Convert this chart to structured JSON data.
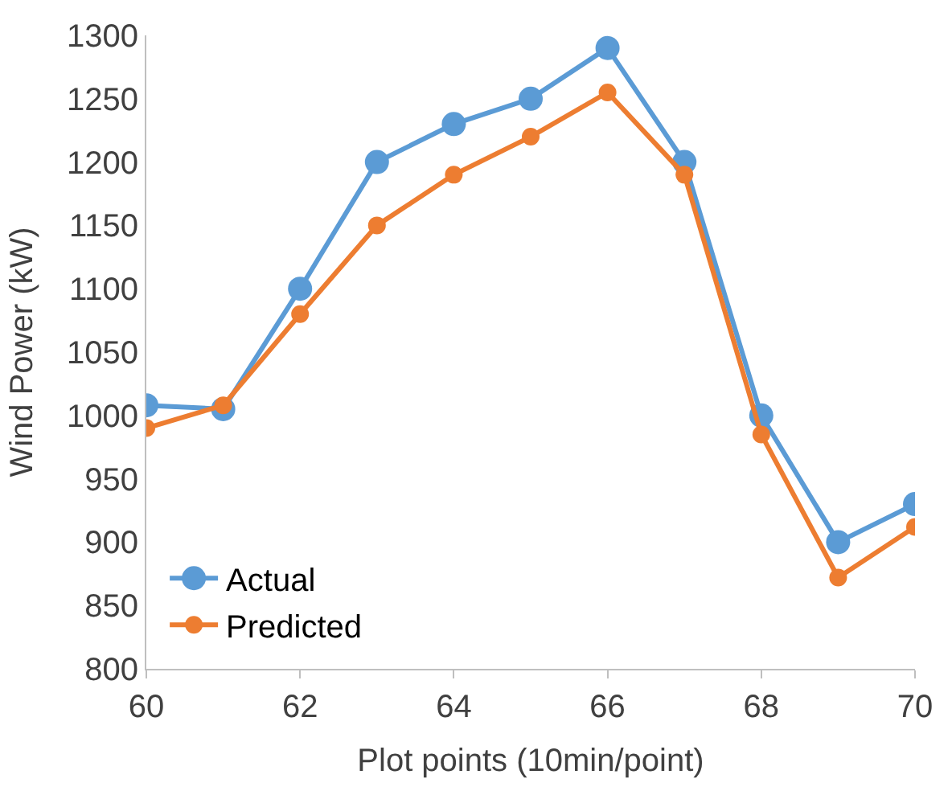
{
  "chart_data": {
    "type": "line",
    "xlabel": "Plot points (10min/point)",
    "ylabel": "Wind Power (kW)",
    "x": [
      60,
      61,
      62,
      63,
      64,
      65,
      66,
      67,
      68,
      69,
      70
    ],
    "series": [
      {
        "name": "Actual",
        "color": "#5b9bd5",
        "values": [
          1008,
          1005,
          1100,
          1200,
          1230,
          1250,
          1290,
          1200,
          1000,
          900,
          930
        ]
      },
      {
        "name": "Predicted",
        "color": "#ed7d31",
        "values": [
          990,
          1008,
          1080,
          1150,
          1190,
          1220,
          1255,
          1190,
          985,
          872,
          912
        ]
      }
    ],
    "xlim": [
      60,
      70
    ],
    "xticks": [
      60,
      62,
      64,
      66,
      68,
      70
    ],
    "ylim": [
      800,
      1300
    ],
    "yticks": [
      800,
      850,
      900,
      950,
      1000,
      1050,
      1100,
      1150,
      1200,
      1250,
      1300
    ],
    "grid": false,
    "legend": "bottom left",
    "marker": "circle",
    "line_style": "solid"
  }
}
